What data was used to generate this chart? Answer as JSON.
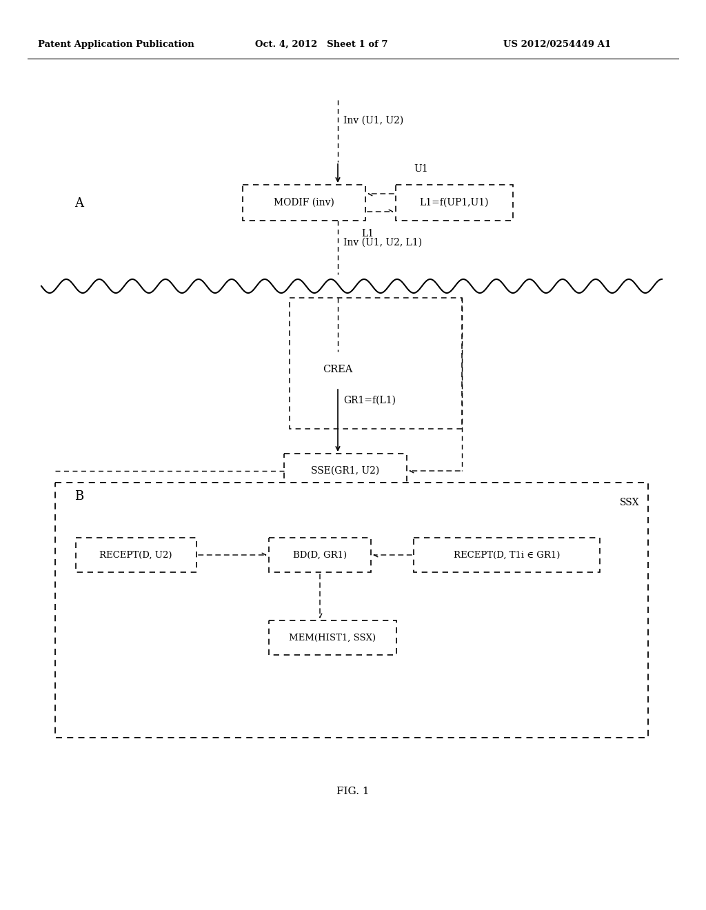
{
  "header_left": "Patent Application Publication",
  "header_middle": "Oct. 4, 2012   Sheet 1 of 7",
  "header_right": "US 2012/0254449 A1",
  "fig_label": "FIG. 1",
  "label_A": "A",
  "label_B": "B",
  "inv_u1_u2_label": "Inv (U1, U2)",
  "u1_label": "U1",
  "l1_label": "L1",
  "inv_u1_u2_l1_label": "Inv (U1, U2, L1)",
  "gr1_f_l1_label": "GR1=f(L1)",
  "ssx_label": "SSX",
  "box_modif": "MODIF (inv)",
  "box_l1_f": "L1=f(UP1,U1)",
  "box_crea": "CREA",
  "box_sse": "SSE(GR1, U2)",
  "box_recept_u2": "RECEPT(D, U2)",
  "box_bd": "BD(D, GR1)",
  "box_recept_t1i": "RECEPT(D, T1i ∈ GR1)",
  "box_mem": "MEM(HIST1, SSX)",
  "bg_color": "#ffffff",
  "text_color": "#000000",
  "line_color": "#000000"
}
